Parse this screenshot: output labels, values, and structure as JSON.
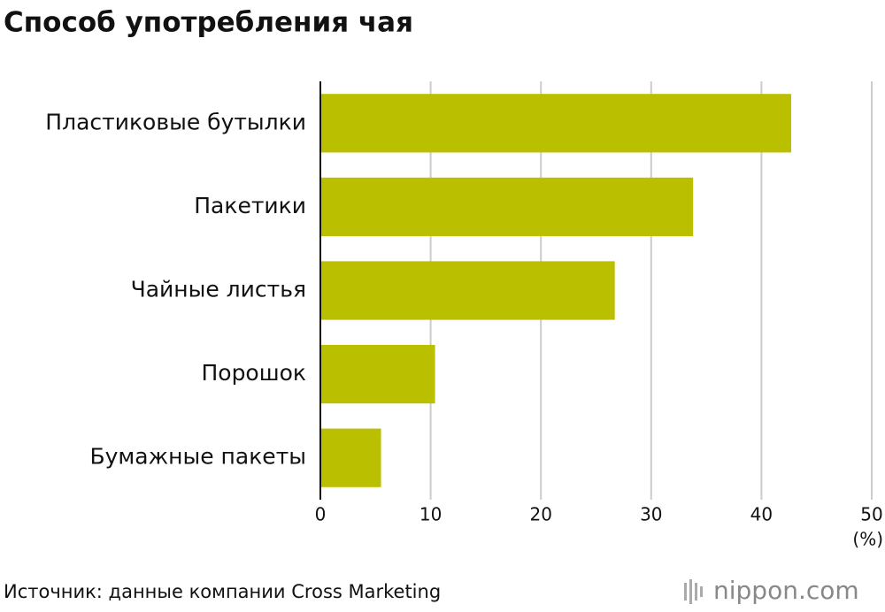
{
  "chart_data": {
    "type": "bar",
    "orientation": "horizontal",
    "title": "Способ употребления чая",
    "categories": [
      "Пластиковые бутылки",
      "Пакетики",
      "Чайные листья",
      "Порошок",
      "Бумажные пакеты"
    ],
    "values": [
      42.7,
      33.8,
      26.7,
      10.4,
      5.5
    ],
    "color": "#bac000",
    "xlim": [
      0,
      50
    ],
    "xticks": [
      0,
      10,
      20,
      30,
      40,
      50
    ],
    "grid": true,
    "x_label": "(%)",
    "source": "Источник: данные компании Cross Marketing",
    "logo_name": "nippon",
    "logo_suffix": ".com"
  }
}
